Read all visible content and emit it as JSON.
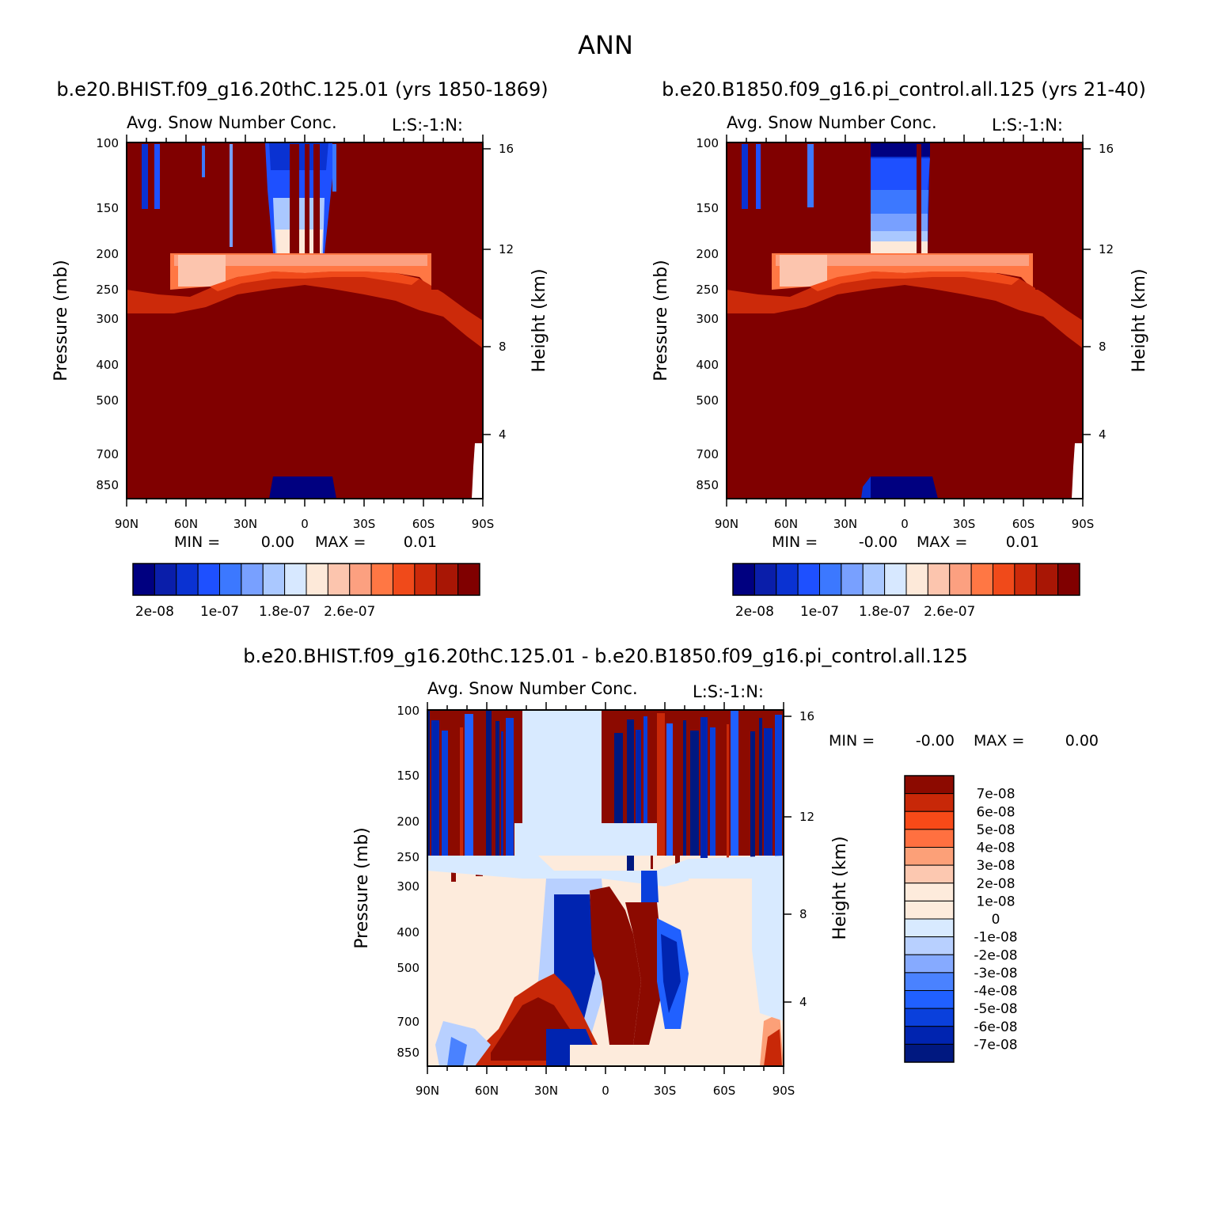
{
  "header": {
    "title": "ANN",
    "left_case": "b.e20.BHIST.f09_g16.20thC.125.01 (yrs 1850-1869)",
    "right_case": "b.e20.B1850.f09_g16.pi_control.all.125 (yrs 21-40)",
    "diff_case": "b.e20.BHIST.f09_g16.20thC.125.01 - b.e20.B1850.f09_g16.pi_control.all.125"
  },
  "colors": {
    "full_levels": [
      "#000080",
      "#0a1eaa",
      "#0a32d2",
      "#1e50ff",
      "#3c78ff",
      "#78a0ff",
      "#aac8ff",
      "#d7e8ff",
      "#fde9d9",
      "#fcc5ae",
      "#fca080",
      "#ff7744",
      "#f04a1a",
      "#cc2a0a",
      "#a81605",
      "#800000"
    ],
    "diff_levels": [
      "#001880",
      "#0024b0",
      "#0a40dc",
      "#2060ff",
      "#4a82ff",
      "#86aaff",
      "#b8d0ff",
      "#d8eaff",
      "#fdebdc",
      "#fcc8b0",
      "#fca078",
      "#ff7040",
      "#f84a18",
      "#c82808",
      "#8c0a00"
    ]
  },
  "chart_data": [
    {
      "type": "heatmap",
      "panel": "top-left",
      "title": "Avg. Snow Number Conc.",
      "corner_label": "L:S:-1:N:",
      "xlabel": "",
      "ylabel": "Pressure (mb)",
      "ylabel_right": "Height (km)",
      "x_ticks": [
        "90N",
        "60N",
        "30N",
        "0",
        "30S",
        "60S",
        "90S"
      ],
      "x_range": [
        90,
        -90
      ],
      "y_ticks": [
        "100",
        "150",
        "200",
        "250",
        "300",
        "400",
        "500",
        "700",
        "850"
      ],
      "y_range": [
        100,
        1000
      ],
      "y_scale": "log",
      "right_ticks": [
        "16",
        "12",
        "8",
        "4"
      ],
      "min_label": "MIN =",
      "min_value": "0.00",
      "max_label": "MAX =",
      "max_value": "0.01",
      "colorbar_labels": [
        "2e-08",
        "1e-07",
        "1.8e-07",
        "2.6e-07"
      ],
      "colorbar_label_positions": [
        1,
        4,
        7,
        10
      ],
      "colorbar_bins": 16
    },
    {
      "type": "heatmap",
      "panel": "top-right",
      "title": "Avg. Snow Number Conc.",
      "corner_label": "L:S:-1:N:",
      "xlabel": "",
      "ylabel": "Pressure (mb)",
      "ylabel_right": "Height (km)",
      "x_ticks": [
        "90N",
        "60N",
        "30N",
        "0",
        "30S",
        "60S",
        "90S"
      ],
      "x_range": [
        90,
        -90
      ],
      "y_ticks": [
        "100",
        "150",
        "200",
        "250",
        "300",
        "400",
        "500",
        "700",
        "850"
      ],
      "y_range": [
        100,
        1000
      ],
      "y_scale": "log",
      "right_ticks": [
        "16",
        "12",
        "8",
        "4"
      ],
      "min_label": "MIN =",
      "min_value": "-0.00",
      "max_label": "MAX =",
      "max_value": "0.01",
      "colorbar_labels": [
        "2e-08",
        "1e-07",
        "1.8e-07",
        "2.6e-07"
      ],
      "colorbar_label_positions": [
        1,
        4,
        7,
        10
      ],
      "colorbar_bins": 16
    },
    {
      "type": "heatmap",
      "panel": "difference",
      "title": "Avg. Snow Number Conc.",
      "corner_label": "L:S:-1:N:",
      "xlabel": "",
      "ylabel": "Pressure (mb)",
      "ylabel_right": "Height (km)",
      "x_ticks": [
        "90N",
        "60N",
        "30N",
        "0",
        "30S",
        "60S",
        "90S"
      ],
      "x_range": [
        90,
        -90
      ],
      "y_ticks": [
        "100",
        "150",
        "200",
        "250",
        "300",
        "400",
        "500",
        "700",
        "850"
      ],
      "y_range": [
        100,
        1000
      ],
      "y_scale": "log",
      "right_ticks": [
        "16",
        "12",
        "8",
        "4"
      ],
      "min_label": "MIN =",
      "min_value": "-0.00",
      "max_label": "MAX =",
      "max_value": "0.00",
      "colorbar_labels": [
        "7e-08",
        "6e-08",
        "5e-08",
        "4e-08",
        "3e-08",
        "2e-08",
        "1e-08",
        "0",
        "-1e-08",
        "-2e-08",
        "-3e-08",
        "-4e-08",
        "-5e-08",
        "-6e-08",
        "-7e-08"
      ],
      "colorbar_bins": 16
    }
  ]
}
